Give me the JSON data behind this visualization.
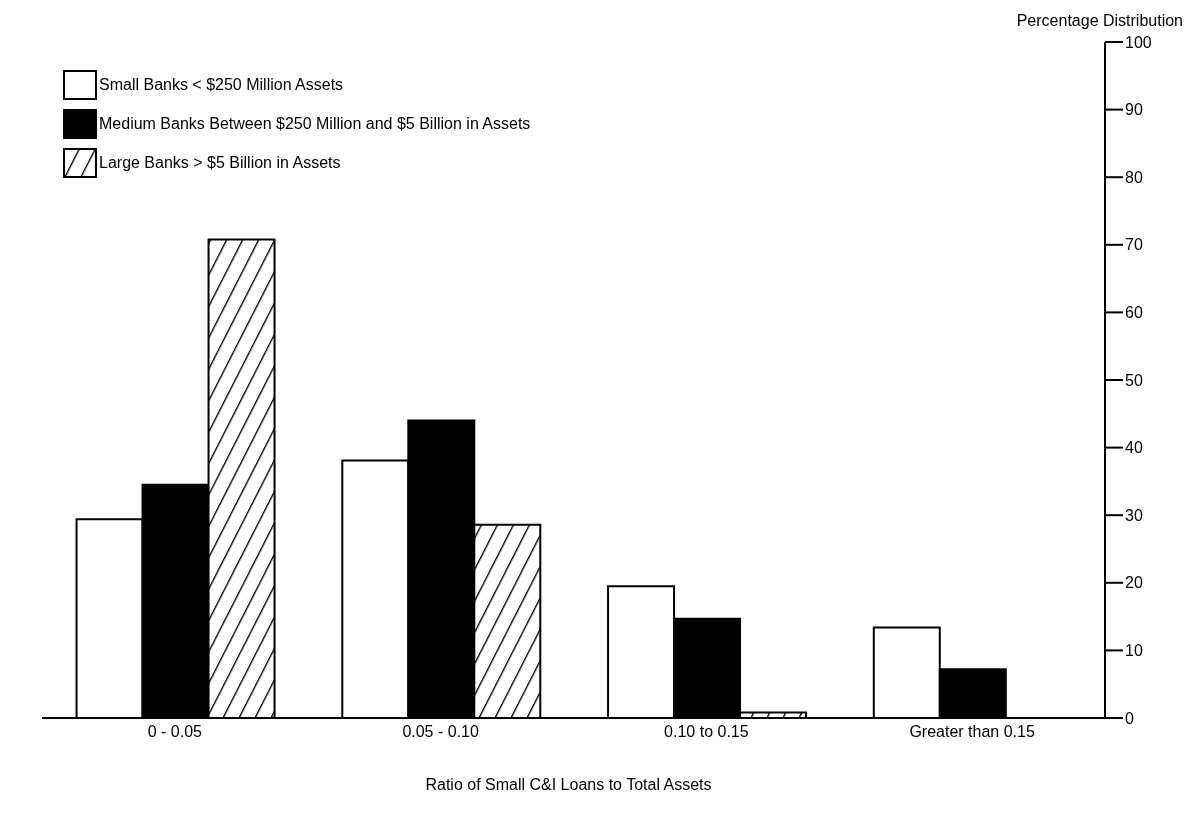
{
  "chart_data": {
    "type": "bar",
    "xlabel": "Ratio of Small C&I Loans to Total Assets",
    "ylabel": "Percentage Distribution",
    "categories": [
      "0 - 0.05",
      "0.05 - 0.10",
      "0.10 to 0.15",
      "Greater than 0.15"
    ],
    "series": [
      {
        "name": "Small Banks < $250 Million Assets",
        "color": "#ffffff",
        "values": [
          29.4,
          38.1,
          19.5,
          13.4
        ]
      },
      {
        "name": "Medium Banks Between $250 Million and $5 Billion in Assets",
        "color": "#000000",
        "values": [
          34.5,
          44.0,
          14.7,
          7.2
        ]
      },
      {
        "name": "Large Banks > $5 Billion in Assets",
        "color": "#000000",
        "values": [
          70.8,
          28.6,
          0.8,
          0
        ]
      }
    ],
    "ylim": [
      0,
      100
    ],
    "yticks": [
      0,
      10,
      20,
      30,
      40,
      50,
      60,
      70,
      80,
      90,
      100
    ],
    "legend": "top left"
  }
}
